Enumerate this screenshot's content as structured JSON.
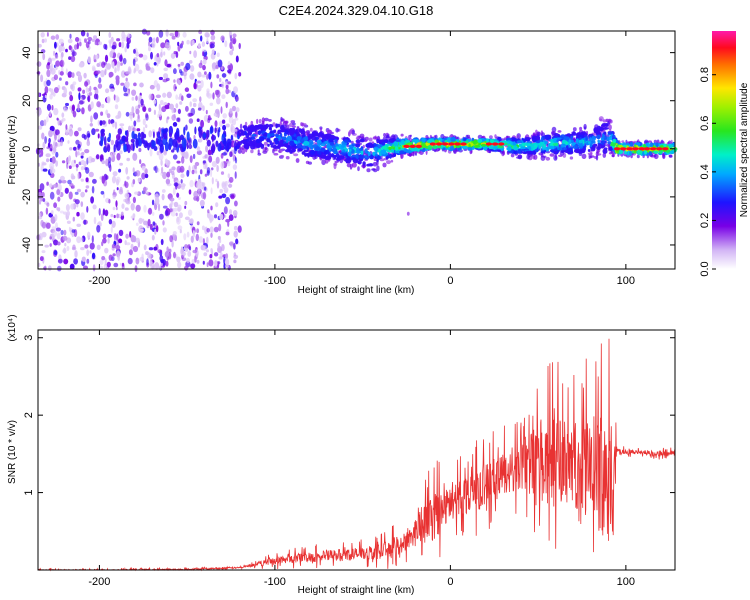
{
  "title": "C2E4.2024.329.04.10.G18",
  "colors": {
    "snr_line": "#e83232",
    "axis": "#000000",
    "background": "#ffffff"
  },
  "chart_data": [
    {
      "type": "heatmap",
      "title": "C2E4.2024.329.04.10.G18",
      "xlabel": "Height of straight line (km)",
      "ylabel": "Frequency (Hz)",
      "xlim": [
        -235,
        128
      ],
      "ylim": [
        -50,
        49
      ],
      "xticks": [
        -200,
        -100,
        0,
        100
      ],
      "yticks": [
        -40,
        -20,
        0,
        20,
        40
      ],
      "colorbar": {
        "label": "Normalized spectral amplitude",
        "range": [
          0,
          0.98
        ],
        "ticks": [
          "0.0",
          "0.2",
          "0.4",
          "0.6",
          "0.8"
        ],
        "colormap": "rainbow (white-violet-blue-cyan-green-yellow-red-magenta)"
      },
      "features": [
        {
          "name": "scattered noise",
          "x_range": [
            -235,
            -120
          ],
          "freq_range": [
            -50,
            49
          ],
          "amplitude": "0.1-0.3"
        },
        {
          "name": "signal band",
          "x_range": [
            -120,
            128
          ],
          "center_freq_hz": 1,
          "width_hz": 8,
          "amplitude": "0.3-0.95"
        }
      ]
    },
    {
      "type": "line",
      "xlabel": "Height of straight line (km)",
      "ylabel": "SNR (10 * v/v)",
      "y_scale_label": "(x10⁴)",
      "xlim": [
        -235,
        128
      ],
      "ylim": [
        0,
        3.1
      ],
      "xticks": [
        -200,
        -100,
        0,
        100
      ],
      "yticks": [
        1,
        2,
        3
      ],
      "series": [
        {
          "x": [
            -235,
            -200,
            -150,
            -120,
            -110,
            -100,
            -90,
            -80,
            -70,
            -60,
            -50,
            -40,
            -30,
            -20,
            -10,
            0,
            10,
            20,
            30,
            40,
            50,
            60,
            70,
            80,
            90,
            93,
            95,
            97,
            100,
            110,
            120,
            128
          ],
          "mean": [
            0.0,
            0.0,
            0.01,
            0.03,
            0.07,
            0.12,
            0.15,
            0.17,
            0.18,
            0.2,
            0.21,
            0.24,
            0.3,
            0.5,
            0.7,
            0.85,
            1.0,
            1.1,
            1.25,
            1.35,
            1.4,
            1.4,
            1.35,
            1.3,
            1.2,
            1.1,
            1.55,
            1.53,
            1.53,
            1.52,
            1.5,
            1.5
          ],
          "peak": [
            0.02,
            0.02,
            0.03,
            0.05,
            0.12,
            0.24,
            0.28,
            0.32,
            0.35,
            0.38,
            0.4,
            0.45,
            0.62,
            0.88,
            1.45,
            1.3,
            1.6,
            1.75,
            1.85,
            2.05,
            2.5,
            2.75,
            2.55,
            2.8,
            3.05,
            2.55,
            1.62,
            1.6,
            1.6,
            1.58,
            1.58,
            1.58
          ]
        }
      ]
    }
  ]
}
